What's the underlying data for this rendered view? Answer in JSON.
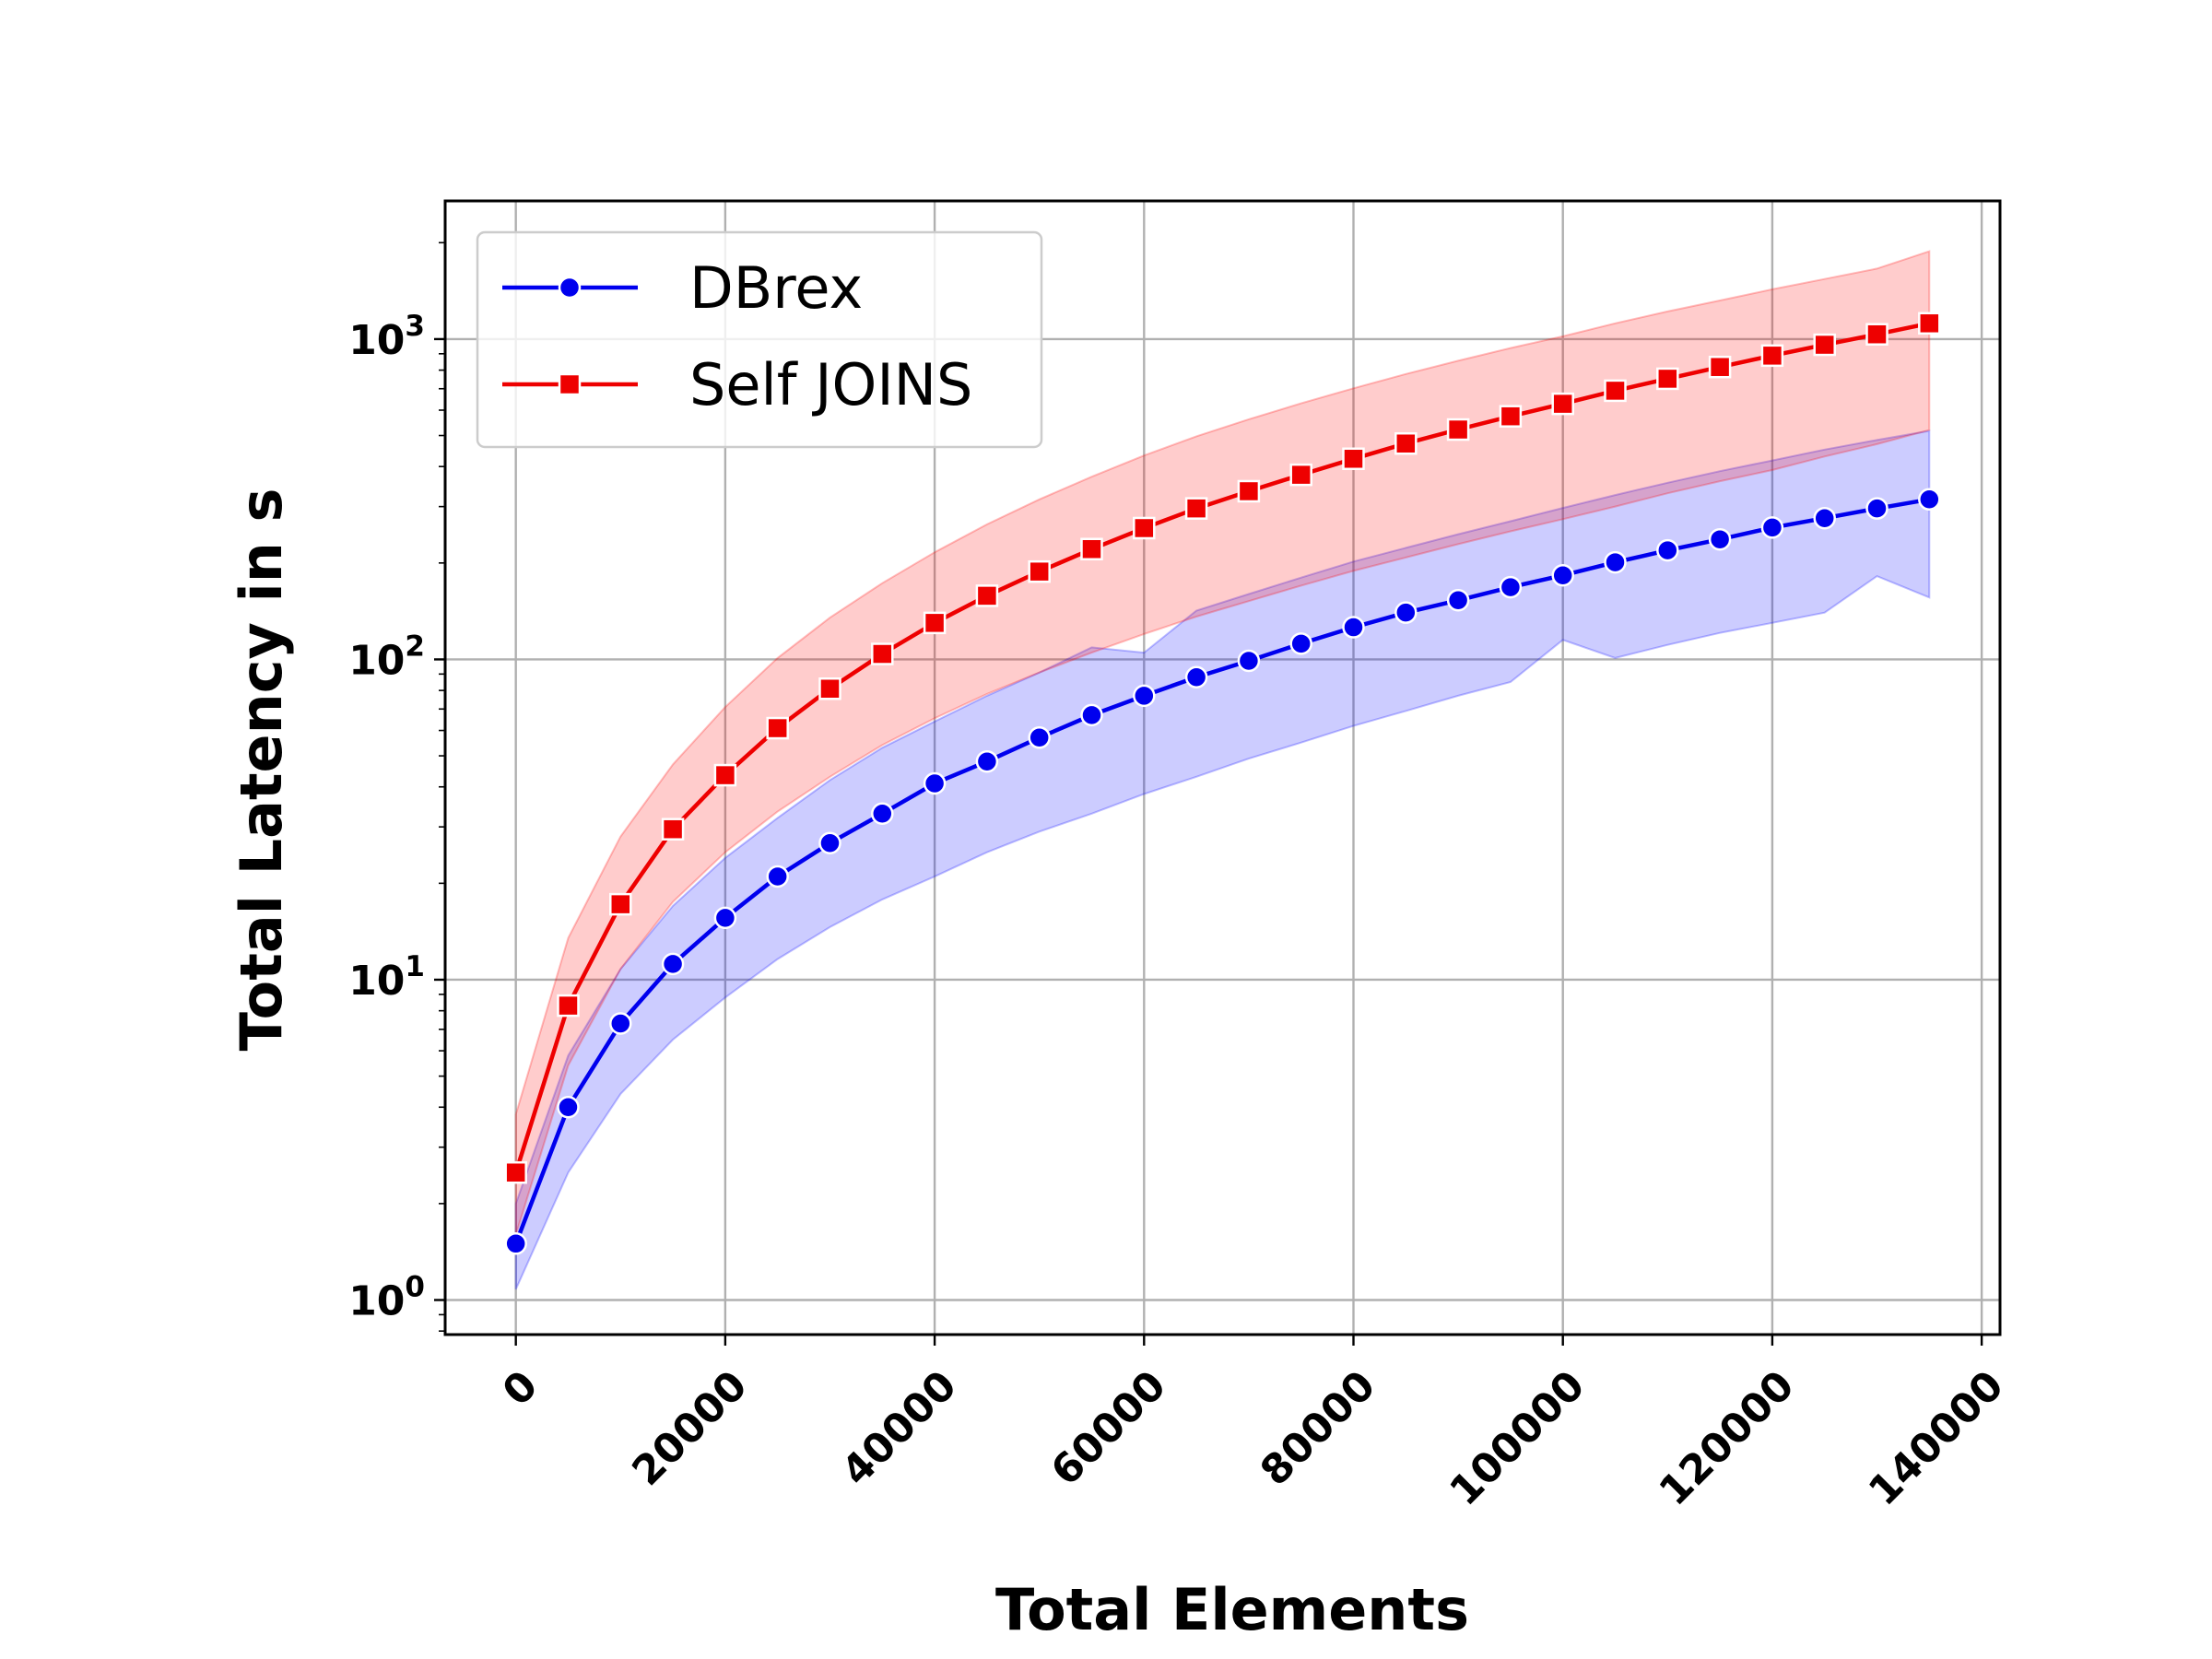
{
  "chart_data": {
    "type": "line",
    "title": "",
    "xlabel": "Total Elements",
    "ylabel": "Total Latency in s",
    "yscale": "log",
    "xlim": [
      -6750,
      141750
    ],
    "ylim": [
      0.78,
      2700
    ],
    "grid": true,
    "legend_position": "top-left",
    "x_ticks": [
      0,
      20000,
      40000,
      60000,
      80000,
      100000,
      120000,
      140000
    ],
    "x_tick_labels": [
      "0",
      "20000",
      "40000",
      "60000",
      "80000",
      "100000",
      "120000",
      "140000"
    ],
    "y_ticks": [
      1,
      10,
      100,
      1000
    ],
    "y_tick_labels": [
      {
        "base": "10",
        "exp": "0"
      },
      {
        "base": "10",
        "exp": "1"
      },
      {
        "base": "10",
        "exp": "2"
      },
      {
        "base": "10",
        "exp": "3"
      }
    ],
    "x": [
      0,
      5000,
      10000,
      15000,
      20000,
      25000,
      30000,
      35000,
      40000,
      45000,
      50000,
      55000,
      60000,
      65000,
      70000,
      75000,
      80000,
      85000,
      90000,
      95000,
      100000,
      105000,
      110000,
      115000,
      120000,
      125000,
      130000,
      135000
    ],
    "series": [
      {
        "name": "DBrex",
        "color": "#0000ee",
        "marker": "circle",
        "values": [
          1.5,
          4.0,
          7.3,
          11.2,
          15.6,
          21,
          26.7,
          33,
          41,
          48,
          57,
          67,
          77,
          88,
          99,
          112,
          126,
          140,
          153,
          168,
          183,
          201,
          219,
          237,
          258,
          276,
          296,
          316
        ],
        "band_upper": [
          2.0,
          5.8,
          10.8,
          17.0,
          24,
          32,
          42,
          53,
          64,
          77,
          91,
          109,
          105,
          142,
          160,
          180,
          202,
          223,
          246,
          270,
          297,
          326,
          356,
          387,
          418,
          452,
          484,
          517
        ],
        "band_lower": [
          1.08,
          2.5,
          4.4,
          6.5,
          8.8,
          11.6,
          14.6,
          17.8,
          21,
          25,
          29,
          33,
          38,
          43,
          49,
          55,
          62,
          69,
          77,
          85,
          115,
          101,
          111,
          121,
          130,
          140,
          182,
          156
        ],
        "band_color": "#0000ff"
      },
      {
        "name": "Self JOINS",
        "color": "#ee0000",
        "marker": "square",
        "values": [
          2.5,
          8.3,
          17.2,
          29.5,
          43.5,
          61,
          81,
          104,
          130,
          158,
          188,
          221,
          257,
          296,
          335,
          377,
          423,
          472,
          522,
          574,
          628,
          690,
          752,
          818,
          888,
          960,
          1035,
          1120
        ],
        "band_upper": [
          3.8,
          13.5,
          28,
          47,
          71,
          101,
          135,
          173,
          216,
          264,
          316,
          372,
          433,
          497,
          562,
          630,
          702,
          778,
          856,
          938,
          1020,
          1120,
          1220,
          1320,
          1430,
          1540,
          1660,
          1880
        ],
        "band_lower": [
          1.6,
          5.4,
          10.8,
          17.5,
          25,
          33.5,
          43,
          54,
          65.5,
          78,
          91,
          105,
          120,
          136,
          152,
          170,
          189,
          208,
          229,
          251,
          274,
          300,
          330,
          360,
          390,
          430,
          470,
          520
        ],
        "band_color": "#ff0000"
      }
    ]
  }
}
